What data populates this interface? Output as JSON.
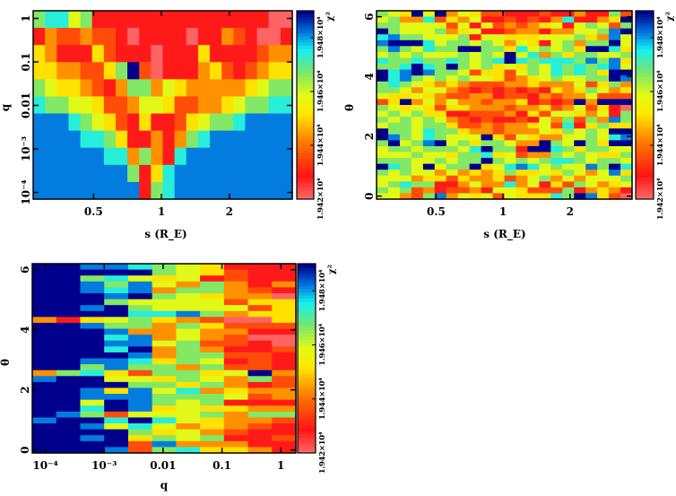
{
  "chart_data": [
    {
      "type": "heatmap",
      "xlabel": "s (R_E)",
      "ylabel": "q",
      "x_scale": "log",
      "xlim": [
        0.27,
        3.8
      ],
      "y_scale": "log",
      "ylim": [
        7e-05,
        1.5
      ],
      "xticks": [
        "0.5",
        "1",
        "2"
      ],
      "xtick_values": [
        0.5,
        1,
        2
      ],
      "yticks": [
        "1",
        "0.1",
        "0.01",
        "10⁻³",
        "10⁻⁴"
      ],
      "ytick_values": [
        1,
        0.1,
        0.01,
        0.001,
        0.0001
      ],
      "colorbar_label": "χ²",
      "colorbar_ticks": [
        "1.942×10⁴",
        "1.944×10⁴",
        "1.946×10⁴",
        "1.948×10⁴"
      ],
      "colorbar_tick_values": [
        19420,
        19440,
        19460,
        19480
      ],
      "z_range": [
        19420,
        19490
      ],
      "z_levels_note": "grid digits 0-9 map linearly onto z_range (0 = lowest χ², 9 = highest); rows listed from top (high y) to bottom",
      "grid": [
        "6775611111111111111100",
        "1322322101111011321001",
        "4311142111011141111233",
        "4433224692011134212344",
        "6544321366354333334566",
        "7665542235542233456677",
        "8887654214112456678888",
        "8888776411313678888888",
        "8888887736317888888888",
        "8888888861478888888888",
        "8888888881678888888888"
      ]
    },
    {
      "type": "heatmap",
      "xlabel": "s (R_E)",
      "ylabel": "θ",
      "x_scale": "log",
      "xlim": [
        0.27,
        3.8
      ],
      "y_scale": "linear",
      "ylim": [
        -0.1,
        6.2
      ],
      "xticks": [
        "0.5",
        "1",
        "2"
      ],
      "xtick_values": [
        0.5,
        1,
        2
      ],
      "yticks": [
        "0",
        "2",
        "4",
        "6"
      ],
      "ytick_values": [
        0,
        2,
        4,
        6
      ],
      "colorbar_label": "χ²",
      "colorbar_ticks": [
        "1.942×10⁴",
        "1.944×10⁴",
        "1.946×10⁴",
        "1.948×10⁴"
      ],
      "colorbar_tick_values": [
        19420,
        19440,
        19460,
        19480
      ],
      "z_range": [
        19420,
        19490
      ],
      "grid": [
        "6549593542211121131162",
        "5633724351121213711349",
        "6655552515232345156526",
        "9655563451123313355689",
        "7866555615544455564385",
        "8999756656535415636695",
        "6865766996647565649974",
        "5656555656595736466556",
        "7667667656797677768684",
        "6679769656454657676785",
        "9789866524425657676499",
        "9786565655423456556698",
        "6765434322233433352463",
        "6653553212121214346534",
        "5445432233122132335222",
        "2493535332334121293999",
        "6545424433323342352410",
        "5656441122231425543516",
        "6565653212112153626386",
        "5665664223233452714644",
        "9665766433233354656599",
        "9865765559425433556578",
        "6956895646653396596499",
        "5665666579661997646655",
        "5556554667452336565446",
        "6665565669656567765665",
        "9765956694578756558697",
        "6565535343464454653584",
        "5553442433423563535556",
        "5676611353373514265345",
        "6562312231554222613431",
        "5532683545254447698420"
      ]
    },
    {
      "type": "heatmap",
      "xlabel": "q",
      "ylabel": "θ",
      "x_scale": "log",
      "xlim": [
        6e-05,
        1.8
      ],
      "y_scale": "linear",
      "ylim": [
        -0.1,
        6.2
      ],
      "xticks": [
        "10⁻⁴",
        "10⁻³",
        "0.01",
        "0.1",
        "1"
      ],
      "xtick_values": [
        0.0001,
        0.001,
        0.01,
        0.1,
        1
      ],
      "yticks": [
        "0",
        "2",
        "4",
        "6"
      ],
      "ytick_values": [
        0,
        2,
        4,
        6
      ],
      "colorbar_label": "χ²",
      "colorbar_ticks": [
        "1.942×10⁴",
        "1.944×10⁴",
        "1.946×10⁴",
        "1.948×10⁴"
      ],
      "colorbar_tick_values": [
        19420,
        19440,
        19460,
        19480
      ],
      "z_range": [
        19420,
        19490
      ],
      "grid": [
        "99887654111",
        "99999654211",
        "99675451211",
        "99868536313",
        "99878366321",
        "99989654330",
        "99965555244",
        "99896555524",
        "99997786344",
        "31456432004",
        "99866364222",
        "99983353311",
        "99978353200",
        "99988562210",
        "99979363112",
        "99998366221",
        "99887465121",
        "99686636221",
        "36742664593",
        "89955465362",
        "99996646312",
        "99848573433",
        "99888666523",
        "99598656111",
        "99798454433",
        "98625556366",
        "89979754332",
        "99857534321",
        "99996453211",
        "99894656112",
        "99992833311",
        "99982674431"
      ]
    }
  ]
}
